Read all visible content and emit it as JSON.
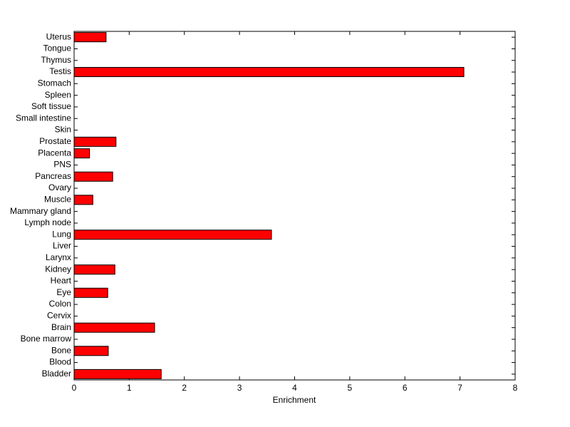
{
  "chart_data": {
    "type": "barh",
    "xlabel": "Enrichment",
    "categories": [
      "Bladder",
      "Blood",
      "Bone",
      "Bone marrow",
      "Brain",
      "Cervix",
      "Colon",
      "Eye",
      "Heart",
      "Kidney",
      "Larynx",
      "Liver",
      "Lung",
      "Lymph node",
      "Mammary gland",
      "Muscle",
      "Ovary",
      "Pancreas",
      "PNS",
      "Placenta",
      "Prostate",
      "Skin",
      "Small intestine",
      "Soft tissue",
      "Spleen",
      "Stomach",
      "Testis",
      "Thymus",
      "Tongue",
      "Uterus"
    ],
    "values": [
      1.58,
      0,
      0.62,
      0,
      1.46,
      0,
      0,
      0.61,
      0,
      0.74,
      0,
      0,
      3.58,
      0,
      0,
      0.34,
      0,
      0.7,
      0,
      0.28,
      0.76,
      0,
      0,
      0,
      0,
      0,
      7.07,
      0,
      0,
      0.58
    ],
    "color": "#ff0000",
    "xlim": [
      0,
      8
    ],
    "xticks": [
      0,
      1,
      2,
      3,
      4,
      5,
      6,
      7,
      8
    ]
  }
}
